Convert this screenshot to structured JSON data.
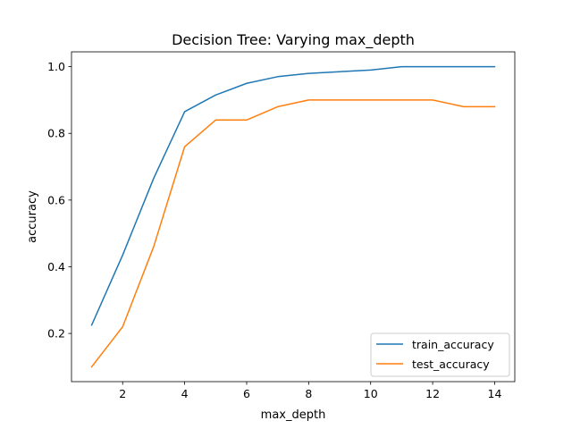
{
  "chart_data": {
    "type": "line",
    "title": "Decision Tree: Varying max_depth",
    "xlabel": "max_depth",
    "ylabel": "accuracy",
    "xlim": [
      0.35,
      14.65
    ],
    "ylim": [
      0.0555,
      1.0445
    ],
    "xticks": [
      2,
      4,
      6,
      8,
      10,
      12,
      14
    ],
    "xtick_labels": [
      "2",
      "4",
      "6",
      "8",
      "10",
      "12",
      "14"
    ],
    "yticks": [
      0.2,
      0.4,
      0.6,
      0.8,
      1.0
    ],
    "ytick_labels": [
      "0.2",
      "0.4",
      "0.6",
      "0.8",
      "1.0"
    ],
    "grid": false,
    "legend_position": "lower-right",
    "x": [
      1,
      2,
      3,
      4,
      5,
      6,
      7,
      8,
      9,
      10,
      11,
      12,
      13,
      14
    ],
    "series": [
      {
        "name": "train_accuracy",
        "color": "#1f77b4",
        "values": [
          0.225,
          0.435,
          0.665,
          0.865,
          0.915,
          0.95,
          0.97,
          0.98,
          0.985,
          0.99,
          1.0,
          1.0,
          1.0,
          1.0
        ]
      },
      {
        "name": "test_accuracy",
        "color": "#ff7f0e",
        "values": [
          0.1,
          0.22,
          0.46,
          0.76,
          0.84,
          0.84,
          0.88,
          0.9,
          0.9,
          0.9,
          0.9,
          0.9,
          0.88,
          0.88
        ]
      }
    ]
  }
}
